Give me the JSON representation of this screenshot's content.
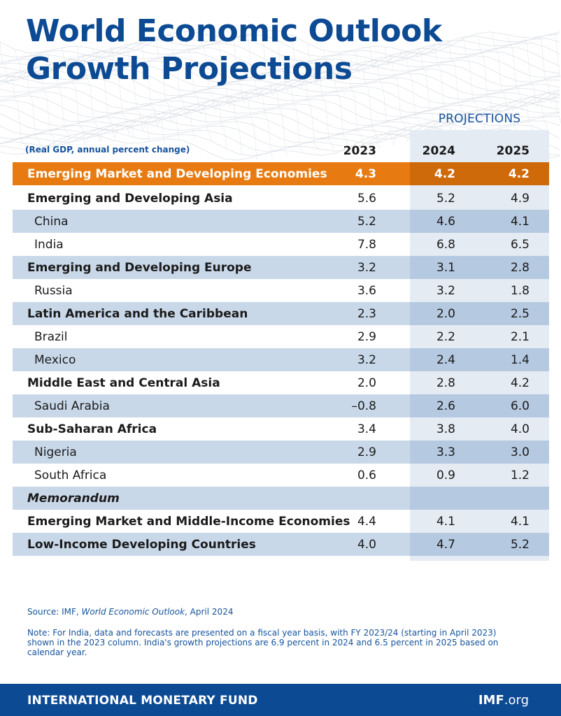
{
  "header": {
    "title_line1": "World Economic Outlook",
    "title_line2": "Growth Projections"
  },
  "chart_data": {
    "type": "table",
    "subtitle": "(Real GDP, annual percent change)",
    "projections_label": "PROJECTIONS",
    "columns": [
      "2023",
      "2024",
      "2025"
    ],
    "highlight": {
      "label": "Emerging Market and Developing Economies",
      "values": [
        "4.3",
        "4.2",
        "4.2"
      ]
    },
    "rows": [
      {
        "label": "Emerging and Developing Asia",
        "level": "region",
        "values": [
          "5.6",
          "5.2",
          "4.9"
        ]
      },
      {
        "label": "China",
        "level": "country",
        "values": [
          "5.2",
          "4.6",
          "4.1"
        ]
      },
      {
        "label": "India",
        "level": "country",
        "values": [
          "7.8",
          "6.8",
          "6.5"
        ]
      },
      {
        "label": "Emerging and Developing Europe",
        "level": "region",
        "values": [
          "3.2",
          "3.1",
          "2.8"
        ]
      },
      {
        "label": "Russia",
        "level": "country",
        "values": [
          "3.6",
          "3.2",
          "1.8"
        ]
      },
      {
        "label": "Latin America and the Caribbean",
        "level": "region",
        "values": [
          "2.3",
          "2.0",
          "2.5"
        ]
      },
      {
        "label": "Brazil",
        "level": "country",
        "values": [
          "2.9",
          "2.2",
          "2.1"
        ]
      },
      {
        "label": "Mexico",
        "level": "country",
        "values": [
          "3.2",
          "2.4",
          "1.4"
        ]
      },
      {
        "label": "Middle East and Central Asia",
        "level": "region",
        "values": [
          "2.0",
          "2.8",
          "4.2"
        ]
      },
      {
        "label": "Saudi Arabia",
        "level": "country",
        "values": [
          "–0.8",
          "2.6",
          "6.0"
        ]
      },
      {
        "label": "Sub-Saharan Africa",
        "level": "region",
        "values": [
          "3.4",
          "3.8",
          "4.0"
        ]
      },
      {
        "label": "Nigeria",
        "level": "country",
        "values": [
          "2.9",
          "3.3",
          "3.0"
        ]
      },
      {
        "label": "South Africa",
        "level": "country",
        "values": [
          "0.6",
          "0.9",
          "1.2"
        ]
      },
      {
        "label": "Memorandum",
        "level": "memo",
        "values": [
          "",
          "",
          ""
        ]
      },
      {
        "label": "Emerging Market and Middle-Income Economies",
        "level": "region",
        "values": [
          "4.4",
          "4.1",
          "4.1"
        ]
      },
      {
        "label": "Low-Income Developing Countries",
        "level": "region",
        "values": [
          "4.0",
          "4.7",
          "5.2"
        ]
      }
    ]
  },
  "source": {
    "prefix": "Source: IMF, ",
    "publication": "World Economic Outlook",
    "suffix": ", April 2024"
  },
  "note": "Note: For India, data and forecasts are presented on a fiscal year basis, with FY 2023/24 (starting in April 2023) shown in the 2023 column. India's growth projections are 6.9 percent in 2024 and 6.5 percent in 2025 based on calendar year.",
  "footer": {
    "organization": "INTERNATIONAL MONETARY FUND",
    "site_bold": "IMF",
    "site_rest": ".org"
  },
  "colors": {
    "title_blue": "#0c4a94",
    "highlight_orange": "#e77b12",
    "row_shade": "#c9d8e9",
    "projection_shade": "#e4ebf3"
  }
}
